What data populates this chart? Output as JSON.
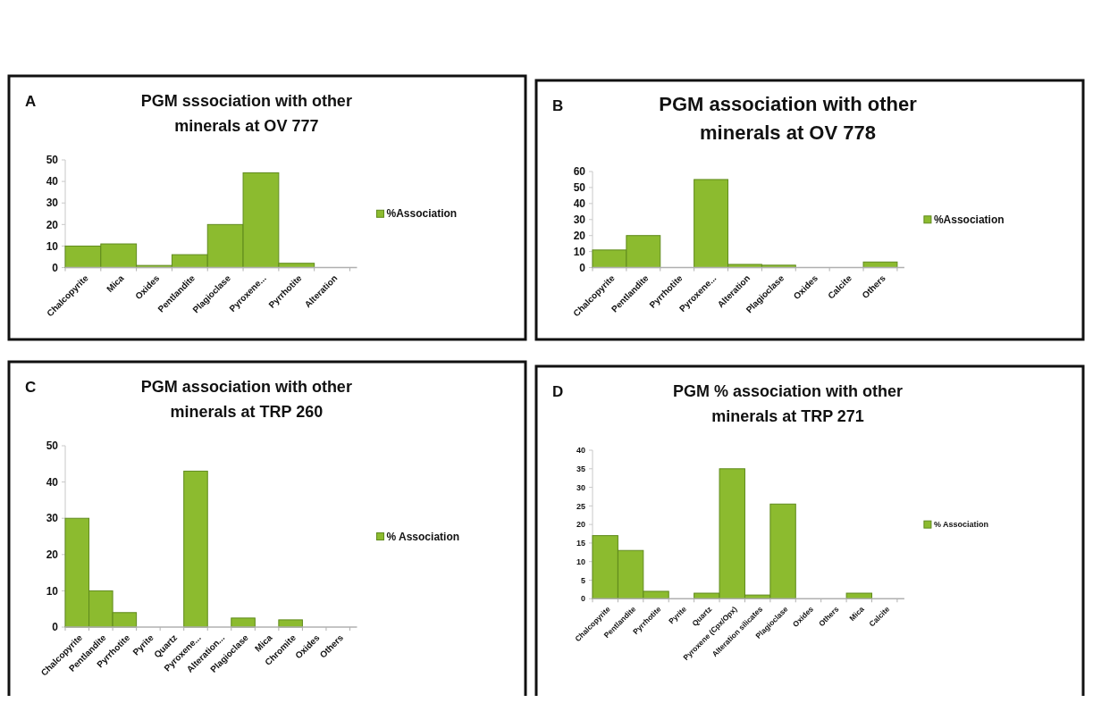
{
  "chart_data": [
    {
      "type": "bar",
      "title": "PGM sssociation with other minerals at OV 777",
      "annotations": [
        "A"
      ],
      "categories": [
        "Chalcopyrite",
        "Mica",
        "Oxides",
        "Pentlandite",
        "Plagioclase",
        "Pyroxene...",
        "Pyrrhotite",
        "Alteration"
      ],
      "series": [
        {
          "name": "%Association",
          "color": "#8cbb2f",
          "values": [
            10,
            11,
            1,
            6,
            20,
            44,
            2,
            0
          ]
        }
      ],
      "ylim": [
        0,
        50
      ],
      "yticks": [
        0,
        10,
        20,
        30,
        40,
        50
      ],
      "legend": "right"
    },
    {
      "type": "bar",
      "title": "PGM association with other minerals at OV 778",
      "annotations": [
        "B"
      ],
      "categories": [
        "Chalcopyrite",
        "Pentlandite",
        "Pyrrhotite",
        "Pyroxene...",
        "Alteration",
        "Plagioclase",
        "Oxides",
        "Calcite",
        "Others"
      ],
      "series": [
        {
          "name": "%Association",
          "color": "#8cbb2f",
          "values": [
            11,
            20,
            0,
            55,
            2,
            1.5,
            0,
            0,
            3.5
          ]
        }
      ],
      "ylim": [
        0,
        60
      ],
      "yticks": [
        0,
        10,
        20,
        30,
        40,
        50,
        60
      ],
      "legend": "right"
    },
    {
      "type": "bar",
      "title": "PGM association with other minerals at TRP 260",
      "annotations": [
        "C"
      ],
      "categories": [
        "Chalcopyrite",
        "Pentlandite",
        "Pyrrhotite",
        "Pyrite",
        "Quartz",
        "Pyroxene...",
        "Alteration...",
        "Plagioclase",
        "Mica",
        "Chromite",
        "Oxides",
        "Others"
      ],
      "series": [
        {
          "name": "% Association",
          "color": "#8cbb2f",
          "values": [
            30,
            10,
            4,
            0,
            0,
            43,
            0,
            2.5,
            0,
            2,
            0,
            0
          ]
        }
      ],
      "ylim": [
        0,
        50
      ],
      "yticks": [
        0,
        10,
        20,
        30,
        40,
        50
      ],
      "legend": "right"
    },
    {
      "type": "bar",
      "title": "PGM % association with other minerals at TRP 271",
      "annotations": [
        "D"
      ],
      "categories": [
        "Chalcopyrite",
        "Pentlandite",
        "Pyrrhotite",
        "Pyrite",
        "Quartz",
        "Pyroxene (Cpx/Opx)",
        "Alteration silicates",
        "Plagioclase",
        "Oxides",
        "Others",
        "Mica",
        "Calcite"
      ],
      "series": [
        {
          "name": "% Association",
          "color": "#8cbb2f",
          "values": [
            17,
            13,
            2,
            0,
            1.5,
            35,
            1,
            25.5,
            0,
            0,
            1.5,
            0
          ]
        }
      ],
      "ylim": [
        0,
        40
      ],
      "yticks": [
        0,
        5,
        10,
        15,
        20,
        25,
        30,
        35,
        40
      ],
      "legend": "right"
    }
  ]
}
